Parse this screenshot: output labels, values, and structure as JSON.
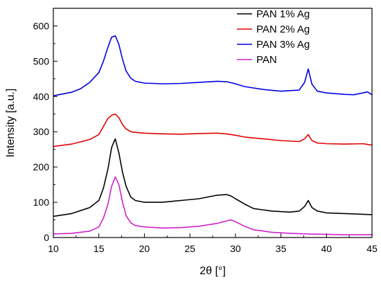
{
  "chart_data": {
    "type": "line",
    "xlabel": "2θ [°]",
    "ylabel": "Intensity [a.u.]",
    "xlim": [
      10,
      45
    ],
    "ylim": [
      0,
      650
    ],
    "xticks": [
      10,
      15,
      20,
      25,
      30,
      35,
      40,
      45
    ],
    "yticks": [
      0,
      100,
      200,
      300,
      400,
      500,
      600
    ],
    "grid": false,
    "legend_position": "top-right",
    "series": [
      {
        "name": "PAN 1% Ag",
        "color": "#000000",
        "x": [
          10,
          12,
          14,
          15,
          15.5,
          16,
          16.4,
          16.8,
          17.2,
          17.6,
          18,
          18.5,
          19,
          20,
          22,
          24,
          26,
          27,
          28,
          29,
          29.5,
          30,
          31,
          32,
          34,
          36,
          37,
          37.6,
          38,
          38.4,
          39,
          40,
          42,
          44,
          45
        ],
        "y": [
          60,
          68,
          85,
          105,
          140,
          195,
          255,
          280,
          240,
          185,
          145,
          115,
          105,
          100,
          100,
          105,
          110,
          115,
          120,
          122,
          118,
          110,
          95,
          82,
          75,
          72,
          75,
          88,
          105,
          85,
          75,
          70,
          68,
          66,
          65
        ]
      },
      {
        "name": "PAN 2% Ag",
        "color": "#e00000",
        "x": [
          10,
          12,
          14,
          15,
          15.5,
          16,
          16.5,
          16.8,
          17.2,
          17.6,
          18,
          18.5,
          19,
          20,
          22,
          24,
          26,
          28,
          29,
          30,
          31,
          33,
          35,
          37,
          37.6,
          38,
          38.4,
          39,
          40,
          42,
          44,
          45
        ],
        "y": [
          258,
          265,
          278,
          292,
          315,
          338,
          348,
          350,
          340,
          320,
          308,
          300,
          298,
          296,
          294,
          293,
          295,
          296,
          294,
          290,
          285,
          280,
          275,
          272,
          280,
          292,
          275,
          268,
          266,
          265,
          266,
          262
        ]
      },
      {
        "name": "PAN 3% Ag",
        "color": "#0000e0",
        "x": [
          10,
          12,
          13,
          14,
          15,
          15.5,
          16,
          16.4,
          16.8,
          17.2,
          17.6,
          18,
          18.5,
          19,
          20,
          22,
          24,
          26,
          28,
          29,
          30,
          31,
          33,
          35,
          37,
          37.6,
          38,
          38.4,
          39,
          40,
          42,
          43,
          44,
          44.5,
          45
        ],
        "y": [
          402,
          412,
          422,
          440,
          468,
          500,
          540,
          568,
          572,
          548,
          505,
          472,
          452,
          443,
          438,
          436,
          437,
          440,
          443,
          442,
          436,
          428,
          420,
          415,
          418,
          440,
          478,
          435,
          415,
          410,
          406,
          405,
          410,
          413,
          405
        ]
      },
      {
        "name": "PAN",
        "color": "#cc22cc",
        "x": [
          10,
          12,
          14,
          15,
          15.5,
          16,
          16.4,
          16.8,
          17.2,
          17.6,
          18,
          18.5,
          19,
          20,
          22,
          24,
          26,
          28,
          29,
          29.5,
          30,
          31,
          32,
          34,
          36,
          38,
          40,
          42,
          44,
          45
        ],
        "y": [
          10,
          12,
          18,
          30,
          55,
          95,
          145,
          172,
          150,
          100,
          62,
          42,
          34,
          30,
          27,
          28,
          32,
          40,
          47,
          50,
          45,
          32,
          22,
          15,
          12,
          10,
          9,
          8,
          8,
          8
        ]
      }
    ]
  }
}
